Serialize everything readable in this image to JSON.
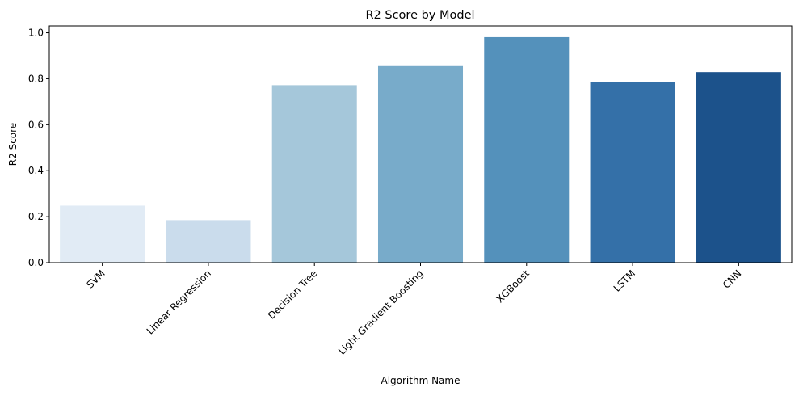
{
  "chart_data": {
    "type": "bar",
    "title": "R2 Score by Model",
    "xlabel": "Algorithm Name",
    "ylabel": "R2 Score",
    "categories": [
      "SVM",
      "Linear Regression",
      "Decision Tree",
      "Light Gradient Boosting",
      "XGBoost",
      "LSTM",
      "CNN"
    ],
    "values": [
      0.248,
      0.185,
      0.772,
      0.855,
      0.981,
      0.786,
      0.829
    ],
    "colors": [
      "#e1ebf5",
      "#cadcec",
      "#a5c7da",
      "#78abca",
      "#5491bb",
      "#3470a8",
      "#1c528b"
    ],
    "ylim": [
      0,
      1.03
    ],
    "yticks": [
      0.0,
      0.2,
      0.4,
      0.6,
      0.8,
      1.0
    ],
    "ytick_labels": [
      "0.0",
      "0.2",
      "0.4",
      "0.6",
      "0.8",
      "1.0"
    ],
    "grid": false,
    "legend": "none"
  }
}
